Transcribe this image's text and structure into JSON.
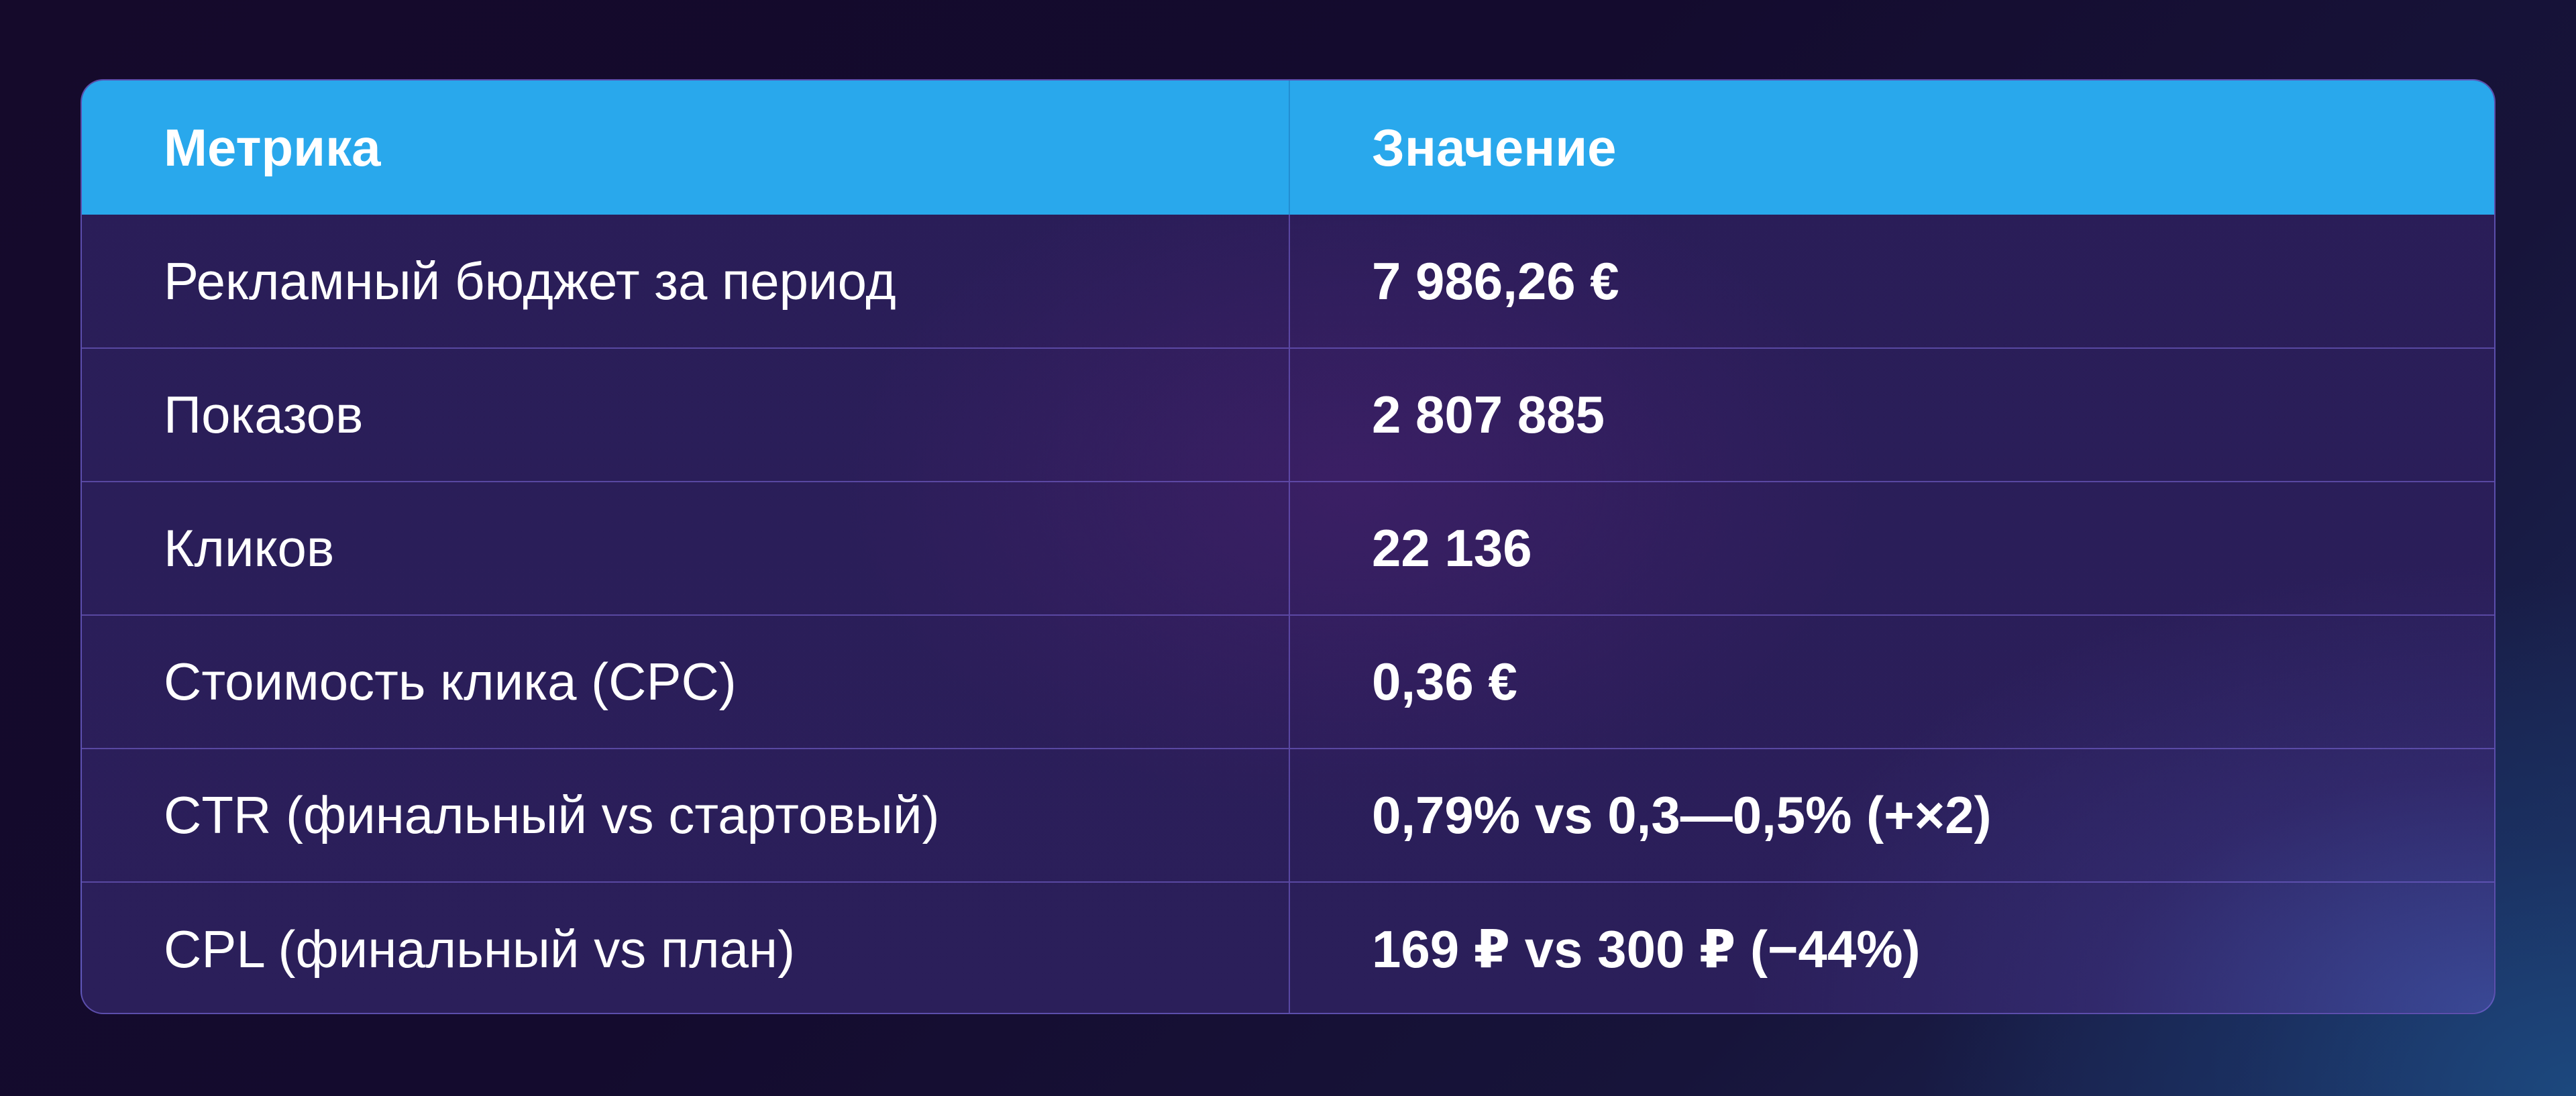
{
  "table": {
    "headers": [
      "Метрика",
      "Значение"
    ],
    "rows": [
      {
        "metric": "Рекламный бюджет за период",
        "value": "7 986,26 €"
      },
      {
        "metric": "Показов",
        "value": "2 807 885"
      },
      {
        "metric": "Кликов",
        "value": "22 136"
      },
      {
        "metric": "Стоимость клика (CPC)",
        "value": "0,36 €"
      },
      {
        "metric": "CTR (финальный vs стартовый)",
        "value": "0,79% vs 0,3—0,5% (+×2)"
      },
      {
        "metric": "CPL (финальный vs план)",
        "value": "169 ₽ vs 300 ₽ (−44%)"
      }
    ]
  },
  "colors": {
    "header_bg": "#29a8ec",
    "card_bg": "#2a1d58",
    "page_bg": "#150a2b",
    "text": "#ffffff"
  }
}
